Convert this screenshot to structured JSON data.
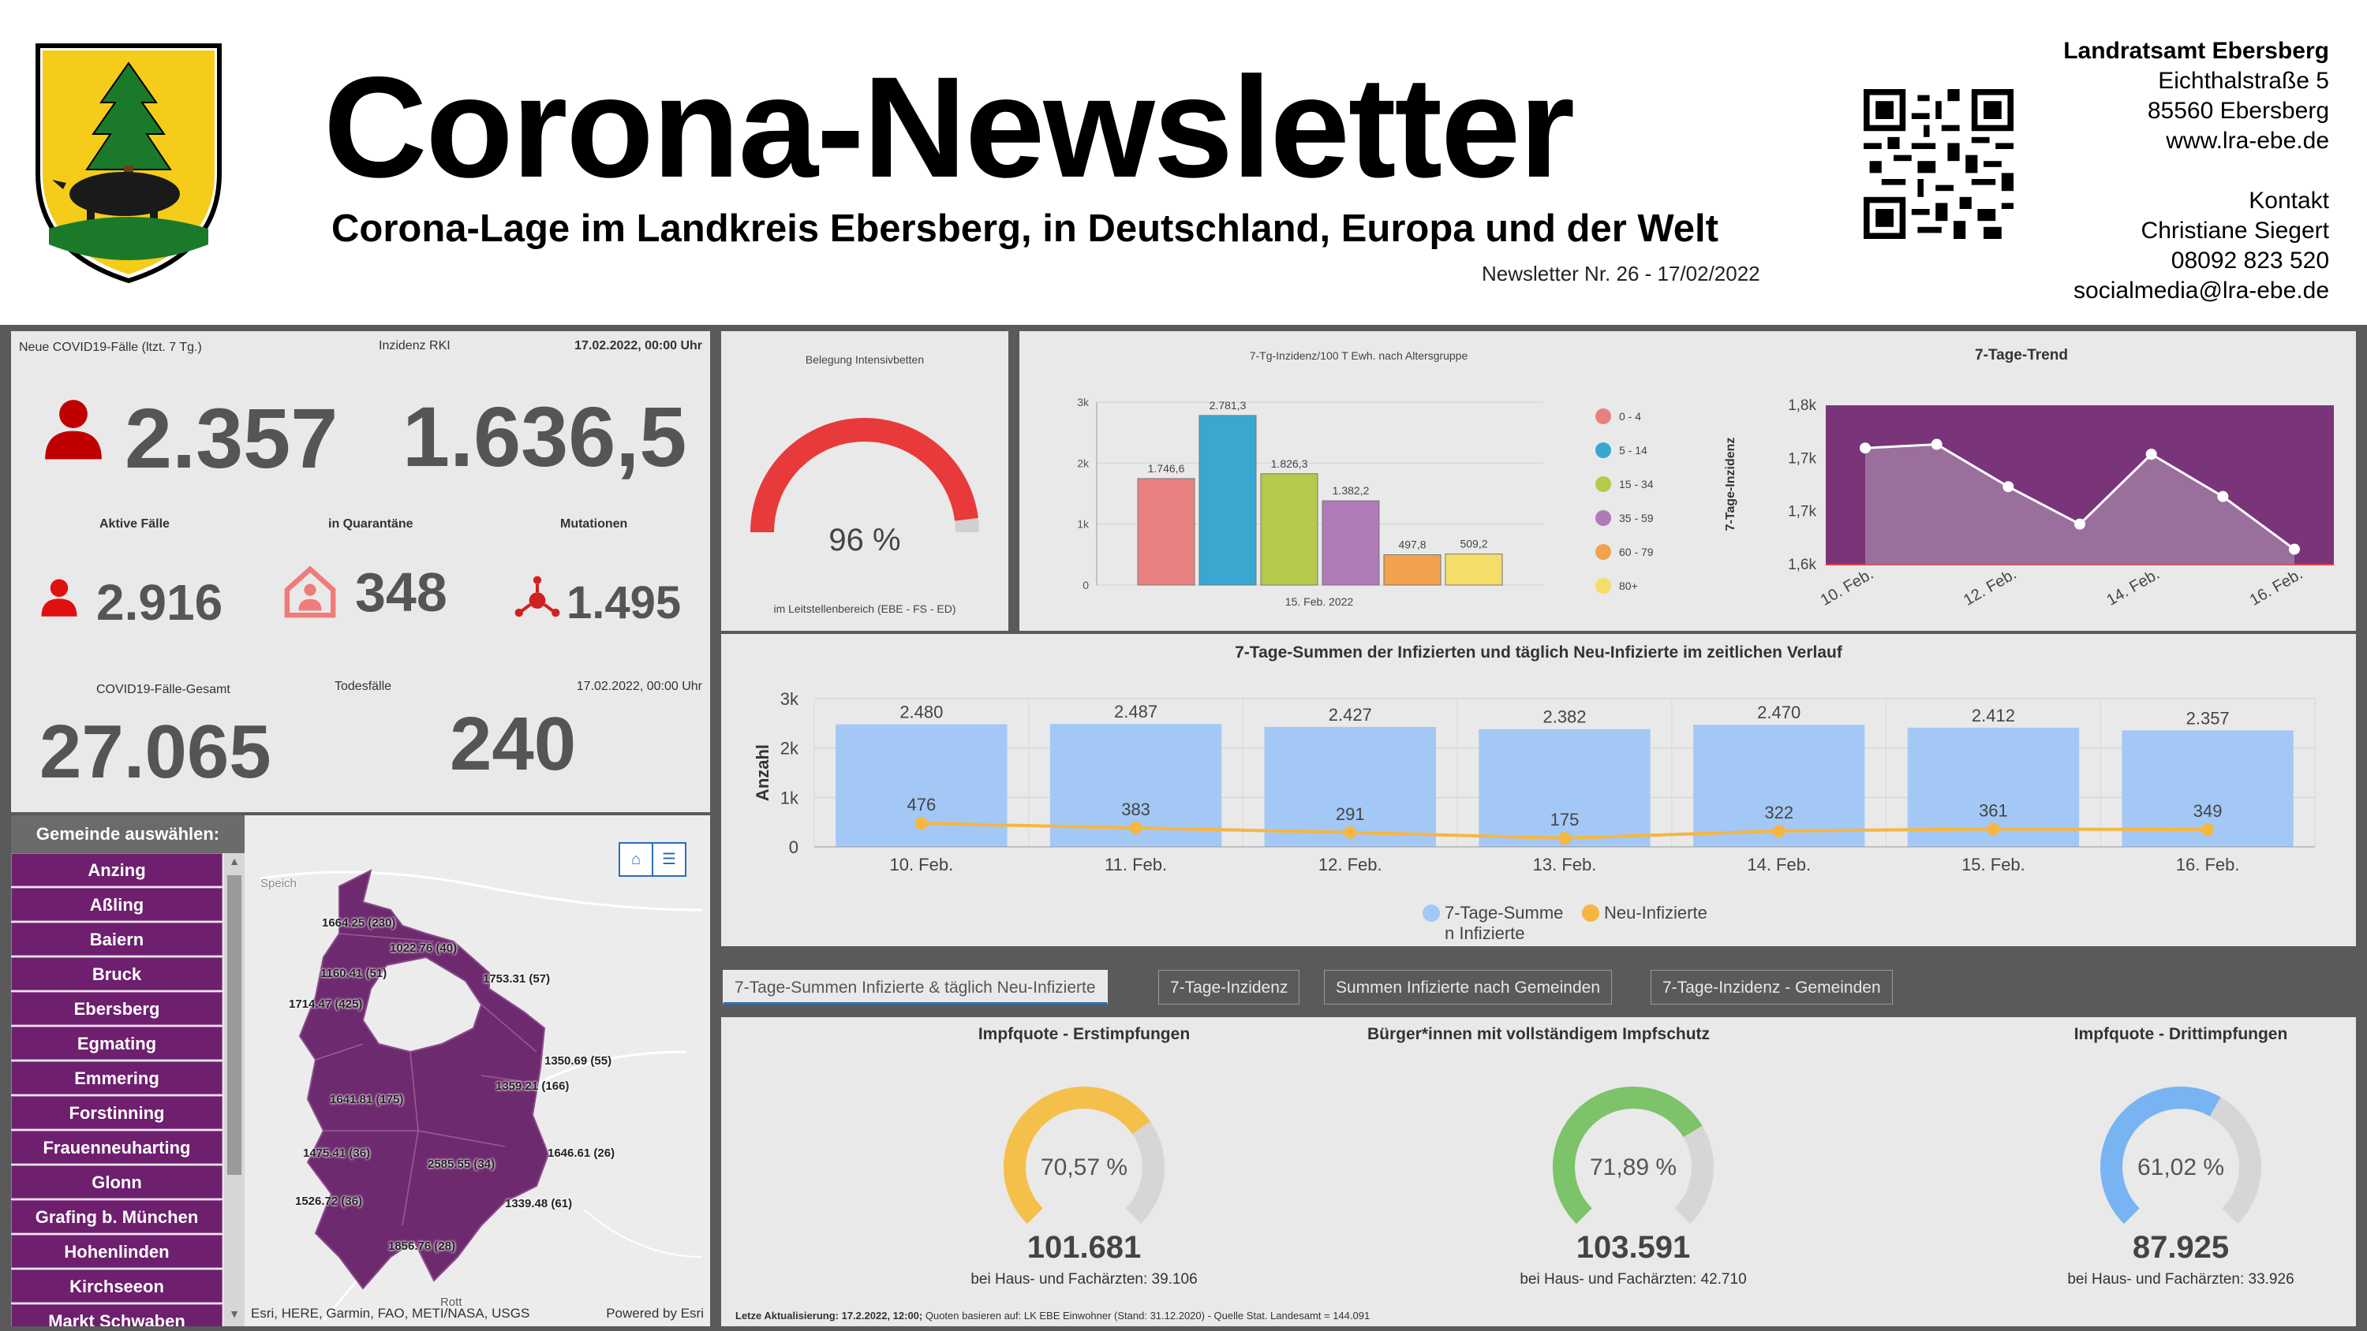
{
  "header": {
    "title": "Corona-Newsletter",
    "subtitle": "Corona-Lage im Landkreis Ebersberg, in Deutschland, Europa und der Welt",
    "issue": "Newsletter Nr. 26 - 17/02/2022",
    "address": {
      "org": "Landratsamt Ebersberg",
      "street": "Eichthalstraße 5",
      "city": "85560 Ebersberg",
      "web": "www.lra-ebe.de",
      "contact_label": "Kontakt",
      "contact_name": "Christiane Siegert",
      "phone": "08092 823 520",
      "email": "socialmedia@lra-ebe.de"
    }
  },
  "kpi": {
    "new_cases_label": "Neue COVID19-Fälle (ltzt. 7 Tg.)",
    "incidence_label": "Inzidenz RKI",
    "date1": "17.02.2022, 00:00 Uhr",
    "new_cases": "2.357",
    "incidence": "1.636,5",
    "active_label": "Aktive Fälle",
    "quarantine_label": "in Quarantäne",
    "mutation_label": "Mutationen",
    "active": "2.916",
    "quarantine": "348",
    "mutations": "1.495",
    "total_label": "COVID19-Fälle-Gesamt",
    "deaths_label": "Todesfälle",
    "date2": "17.02.2022, 00:00 Uhr",
    "total": "27.065",
    "deaths": "240"
  },
  "municipalities": {
    "header": "Gemeinde auswählen:",
    "items": [
      "Anzing",
      "Aßling",
      "Baiern",
      "Bruck",
      "Ebersberg",
      "Egmating",
      "Emmering",
      "Forstinning",
      "Frauenneuharting",
      "Glonn",
      "Grafing b. München",
      "Hohenlinden",
      "Kirchseeon",
      "Markt Schwaben"
    ]
  },
  "map": {
    "labels": [
      {
        "text": "Speich"
      },
      {
        "text": "1664.25 (230)"
      },
      {
        "text": "1022.76 (40)"
      },
      {
        "text": "1160.41 (51)"
      },
      {
        "text": "1753.31 (57)"
      },
      {
        "text": "1714.47 (425)"
      },
      {
        "text": "1350.69 (55)"
      },
      {
        "text": "1359.21 (166)"
      },
      {
        "text": "1641.81 (175)"
      },
      {
        "text": "1475.41 (36)"
      },
      {
        "text": "2585.55 (34)"
      },
      {
        "text": "1646.61 (26)"
      },
      {
        "text": "1526.72 (36)"
      },
      {
        "text": "1339.48 (61)"
      },
      {
        "text": "1856.76 (28)"
      },
      {
        "text": "Rott"
      }
    ],
    "attribution": "Esri, HERE, Garmin, FAO, METI/NASA, USGS",
    "powered": "Powered by Esri",
    "home_icon": "home-icon",
    "list_icon": "list-icon",
    "region_color": "#6e2a6e"
  },
  "icu": {
    "title": "Belegung Intensivbetten",
    "value_text": "96 %",
    "value": 96,
    "footer": "im Leitstellenbereich (EBE - FS - ED)",
    "color": "#e83a3a"
  },
  "chart_data": [
    {
      "type": "bar",
      "title": "7-Tg-Inzidenz/100 T Ewh. nach Altersgruppe",
      "xlabel": "15. Feb. 2022",
      "categories": [
        "0 - 4",
        "5 - 14",
        "15 - 34",
        "35 - 59",
        "60 - 79",
        "80+"
      ],
      "values": [
        1746.6,
        2781.3,
        1826.3,
        1382.2,
        497.8,
        509.2
      ],
      "value_labels": [
        "1.746,6",
        "2.781,3",
        "1.826,3",
        "1.382,2",
        "497,8",
        "509,2"
      ],
      "colors": [
        "#e88080",
        "#3aa7d0",
        "#b5c94a",
        "#b07ab8",
        "#f2a24e",
        "#f5dd6a"
      ],
      "y_ticks": [
        "0",
        "1k",
        "2k",
        "3k"
      ],
      "ylim": [
        0,
        3000
      ],
      "legend": "right"
    },
    {
      "type": "area",
      "title": "7-Tage-Trend",
      "ylabel": "7-Tage-Inzidenz",
      "x": [
        "10. Feb.",
        "11. Feb.",
        "12. Feb.",
        "13. Feb.",
        "14. Feb.",
        "15. Feb.",
        "16. Feb."
      ],
      "x_ticks": [
        "10. Feb.",
        "12. Feb.",
        "14. Feb.",
        "16. Feb."
      ],
      "values": [
        1740,
        1746,
        1677,
        1616,
        1730,
        1661,
        1575
      ],
      "y_ticks": [
        "1,6k",
        "1,7k",
        "1,7k",
        "1,8k"
      ],
      "ylim": [
        1550,
        1820
      ],
      "color": "#7a347a"
    },
    {
      "type": "bar",
      "title": "7-Tage-Summen der Infizierten und täglich Neu-Infizierte im zeitlichen Verlauf",
      "ylabel": "Anzahl",
      "categories": [
        "10. Feb.",
        "11. Feb.",
        "12. Feb.",
        "13. Feb.",
        "14. Feb.",
        "15. Feb.",
        "16. Feb."
      ],
      "series": [
        {
          "name": "7-Tage-Summe n Infizierte",
          "values": [
            2480,
            2487,
            2427,
            2382,
            2470,
            2412,
            2357
          ],
          "labels": [
            "2.480",
            "2.487",
            "2.427",
            "2.382",
            "2.470",
            "2.412",
            "2.357"
          ],
          "color": "#a3c8f5"
        },
        {
          "name": "Neu-Infizierte",
          "values": [
            476,
            383,
            291,
            175,
            322,
            361,
            349
          ],
          "labels": [
            "476",
            "383",
            "291",
            "175",
            "322",
            "361",
            "349"
          ],
          "color": "#f5b642"
        }
      ],
      "y_ticks": [
        "0",
        "1k",
        "2k",
        "3k"
      ],
      "ylim": [
        0,
        3000
      ],
      "legend_1": "7-Tage-Summe",
      "legend_1b": "n Infizierte",
      "legend_2": "Neu-Infizierte"
    }
  ],
  "tabs": [
    {
      "label": "7-Tage-Summen Infizierte & täglich Neu-Infizierte",
      "active": true
    },
    {
      "label": "7-Tage-Inzidenz",
      "active": false
    },
    {
      "label": "Summen Infizierte nach Gemeinden",
      "active": false
    },
    {
      "label": "7-Tage-Inzidenz - Gemeinden",
      "active": false
    }
  ],
  "vaccination": {
    "gauges": [
      {
        "title": "Impfquote  - Erstimpfungen",
        "value": 70.57,
        "value_text": "70,57 %",
        "number": "101.681",
        "sub": "bei Haus- und Fachärzten: 39.106",
        "color": "#f5c04a"
      },
      {
        "title": "Bürger*innen mit vollständigem Impfschutz",
        "value": 71.89,
        "value_text": "71,89 %",
        "number": "103.591",
        "sub": "bei Haus- und Fachärzten: 42.710",
        "color": "#7cc36a"
      },
      {
        "title": "Impfquote  - Drittimpfungen",
        "value": 61.02,
        "value_text": "61,02 %",
        "number": "87.925",
        "sub": "bei Haus- und Fachärzten: 33.926",
        "color": "#79b4f2"
      }
    ],
    "footnote_bold": "Letze Aktualisierung: 17.2.2022, 12:00;",
    "footnote": " Quoten basieren auf: LK EBE Einwohner (Stand: 31.12.2020) - Quelle Stat. Landesamt = 144.091"
  }
}
